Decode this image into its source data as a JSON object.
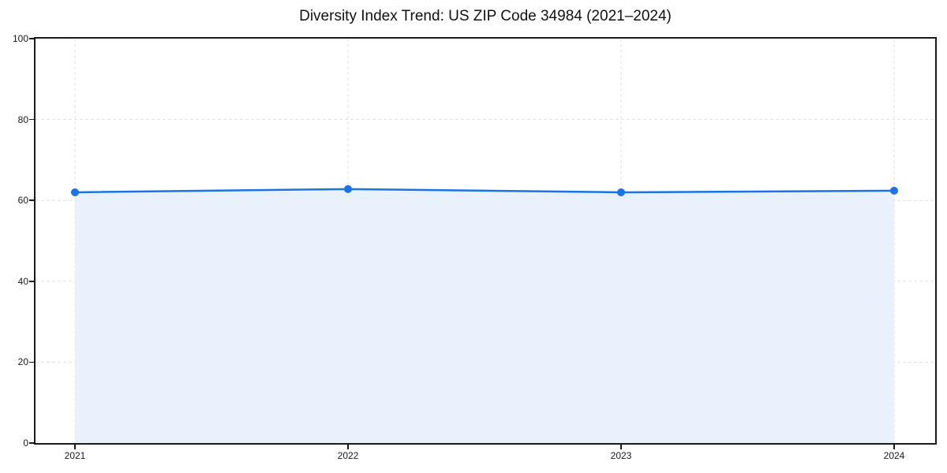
{
  "chart_data": {
    "type": "area",
    "title": "Diversity Index Trend: US ZIP Code 34984 (2021–2024)",
    "x": [
      "2021",
      "2022",
      "2023",
      "2024"
    ],
    "series": [
      {
        "name": "Diversity Index",
        "values": [
          62.0,
          62.8,
          62.0,
          62.4
        ]
      }
    ],
    "xlabel": "",
    "ylabel": "",
    "ylim": [
      0,
      100
    ],
    "yticks": [
      0,
      20,
      40,
      60,
      80,
      100
    ],
    "grid": true,
    "grid_style": "dashed",
    "legend": false,
    "line_color": "#1a73e8",
    "fill_color": "#e8f1fc",
    "marker": "circle"
  }
}
